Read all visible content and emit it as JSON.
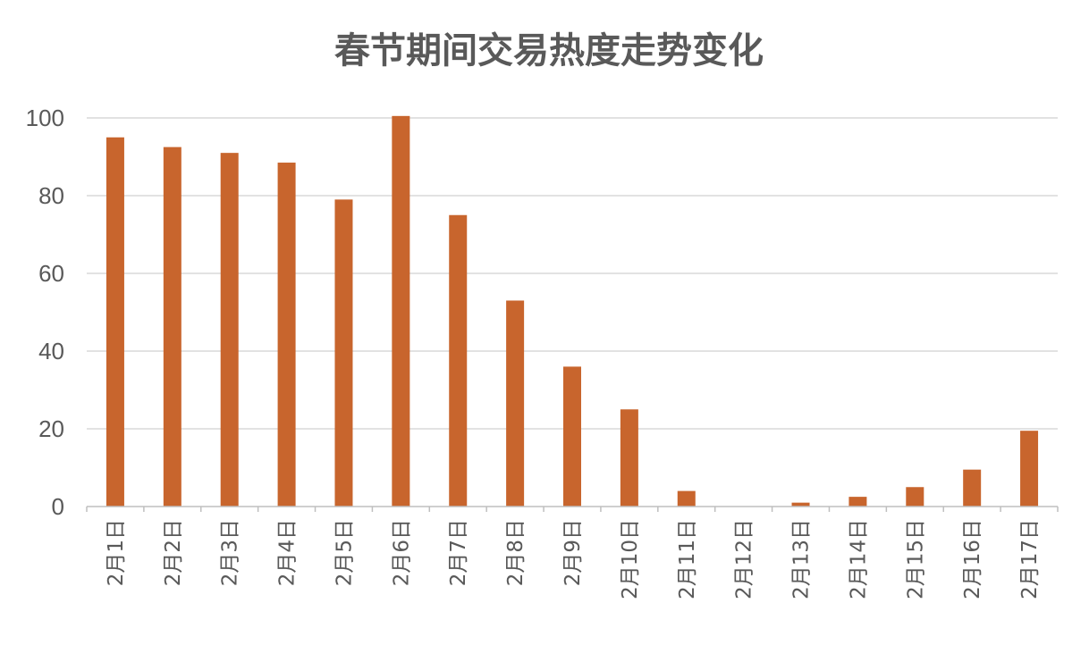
{
  "chart_data": {
    "type": "bar",
    "title": "春节期间交易热度走势变化",
    "categories": [
      "2月1日",
      "2月2日",
      "2月3日",
      "2月4日",
      "2月5日",
      "2月6日",
      "2月7日",
      "2月8日",
      "2月9日",
      "2月10日",
      "2月11日",
      "2月12日",
      "2月13日",
      "2月14日",
      "2月15日",
      "2月16日",
      "2月17日"
    ],
    "values": [
      95,
      92.5,
      91,
      88.5,
      79,
      100.5,
      75,
      53,
      36,
      25,
      4,
      0,
      1,
      2.5,
      5,
      9.5,
      19.5
    ],
    "yticks": [
      "0",
      "20",
      "40",
      "60",
      "80",
      "100"
    ],
    "ylim": [
      0,
      100
    ],
    "grid": true,
    "bar_color": "#c8652d"
  }
}
